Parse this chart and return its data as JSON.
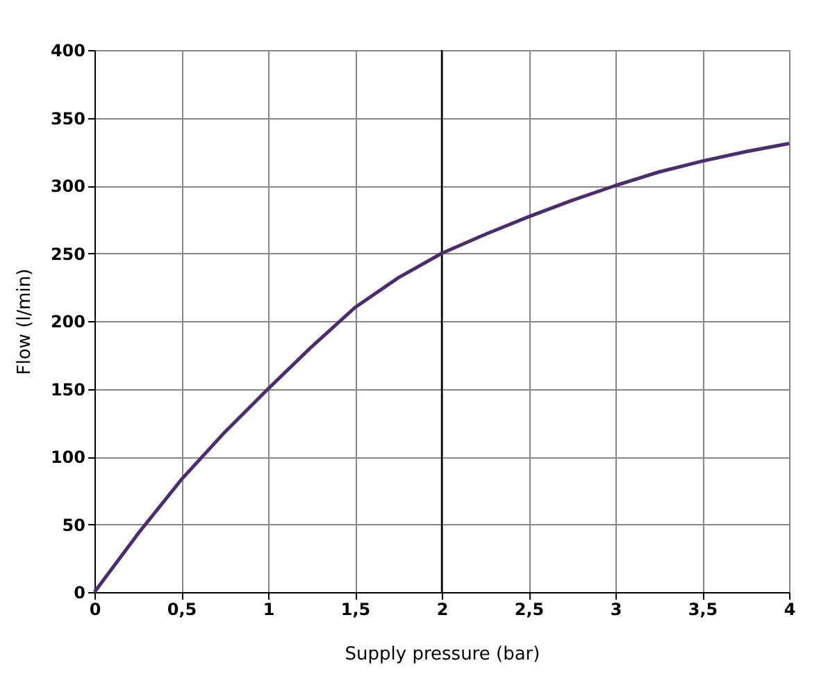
{
  "chart_data": {
    "type": "line",
    "xlabel": "Supply pressure (bar)",
    "ylabel": "Flow (l/min)",
    "x": [
      0,
      0.25,
      0.5,
      0.75,
      1,
      1.25,
      1.5,
      1.75,
      2,
      2.25,
      2.5,
      2.75,
      3,
      3.25,
      3.5,
      3.75,
      4
    ],
    "series": [
      {
        "color": "#4b2d6e",
        "values": [
          0,
          43,
          83,
          118,
          150,
          181,
          210,
          232,
          250,
          264,
          277,
          289,
          300,
          310,
          318,
          325,
          331
        ]
      }
    ],
    "xlim": [
      0,
      4
    ],
    "ylim": [
      0,
      400
    ],
    "xticks": [
      0,
      {
        "value": 0.5,
        "label": "0,5"
      },
      1,
      {
        "value": 1.5,
        "label": "1,5"
      },
      2,
      {
        "value": 2.5,
        "label": "2,5"
      },
      3,
      {
        "value": 3.5,
        "label": "3,5"
      },
      4
    ],
    "yticks": [
      0,
      50,
      100,
      150,
      200,
      250,
      300,
      350,
      400
    ],
    "ref_lines": [
      {
        "axis": "x",
        "value": 2,
        "color": "#000000"
      }
    ],
    "grid": true,
    "marker": "none",
    "line_style": "solid"
  }
}
